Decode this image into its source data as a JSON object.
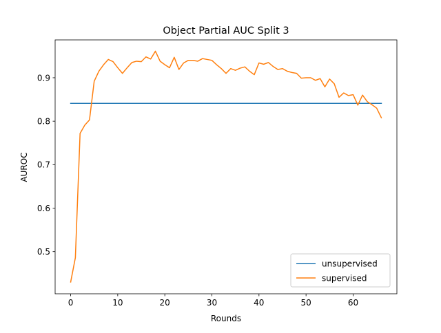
{
  "chart_data": {
    "type": "line",
    "title": "Object Partial AUC Split 3",
    "xlabel": "Rounds",
    "ylabel": "AUROC",
    "xlim": [
      -3.3,
      69.3
    ],
    "ylim": [
      0.403,
      0.987
    ],
    "xticks": [
      0,
      10,
      20,
      30,
      40,
      50,
      60
    ],
    "yticks": [
      0.5,
      0.6,
      0.7,
      0.8,
      0.9
    ],
    "ytick_labels": [
      "0.5",
      "0.6",
      "0.7",
      "0.8",
      "0.9"
    ],
    "grid": false,
    "legend_position": "lower right",
    "series": [
      {
        "name": "unsupervised",
        "color": "#1f77b4",
        "x": [
          0,
          66
        ],
        "y": [
          0.841,
          0.841
        ]
      },
      {
        "name": "supervised",
        "color": "#ff7f0e",
        "x": [
          0,
          1,
          2,
          3,
          4,
          5,
          6,
          7,
          8,
          9,
          10,
          11,
          12,
          13,
          14,
          15,
          16,
          17,
          18,
          19,
          20,
          21,
          22,
          23,
          24,
          25,
          26,
          27,
          28,
          29,
          30,
          31,
          32,
          33,
          34,
          35,
          36,
          37,
          38,
          39,
          40,
          41,
          42,
          43,
          44,
          45,
          46,
          47,
          48,
          49,
          50,
          51,
          52,
          53,
          54,
          55,
          56,
          57,
          58,
          59,
          60,
          61,
          62,
          63,
          64,
          65,
          66
        ],
        "y": [
          0.43,
          0.486,
          0.772,
          0.791,
          0.803,
          0.892,
          0.915,
          0.93,
          0.942,
          0.937,
          0.923,
          0.91,
          0.923,
          0.935,
          0.938,
          0.937,
          0.948,
          0.943,
          0.961,
          0.938,
          0.93,
          0.923,
          0.947,
          0.919,
          0.934,
          0.94,
          0.94,
          0.938,
          0.944,
          0.942,
          0.94,
          0.93,
          0.921,
          0.91,
          0.921,
          0.917,
          0.922,
          0.925,
          0.915,
          0.907,
          0.934,
          0.931,
          0.935,
          0.926,
          0.919,
          0.921,
          0.915,
          0.912,
          0.91,
          0.899,
          0.9,
          0.9,
          0.894,
          0.898,
          0.879,
          0.897,
          0.886,
          0.855,
          0.865,
          0.859,
          0.861,
          0.837,
          0.86,
          0.845,
          0.838,
          0.83,
          0.808
        ]
      }
    ]
  }
}
